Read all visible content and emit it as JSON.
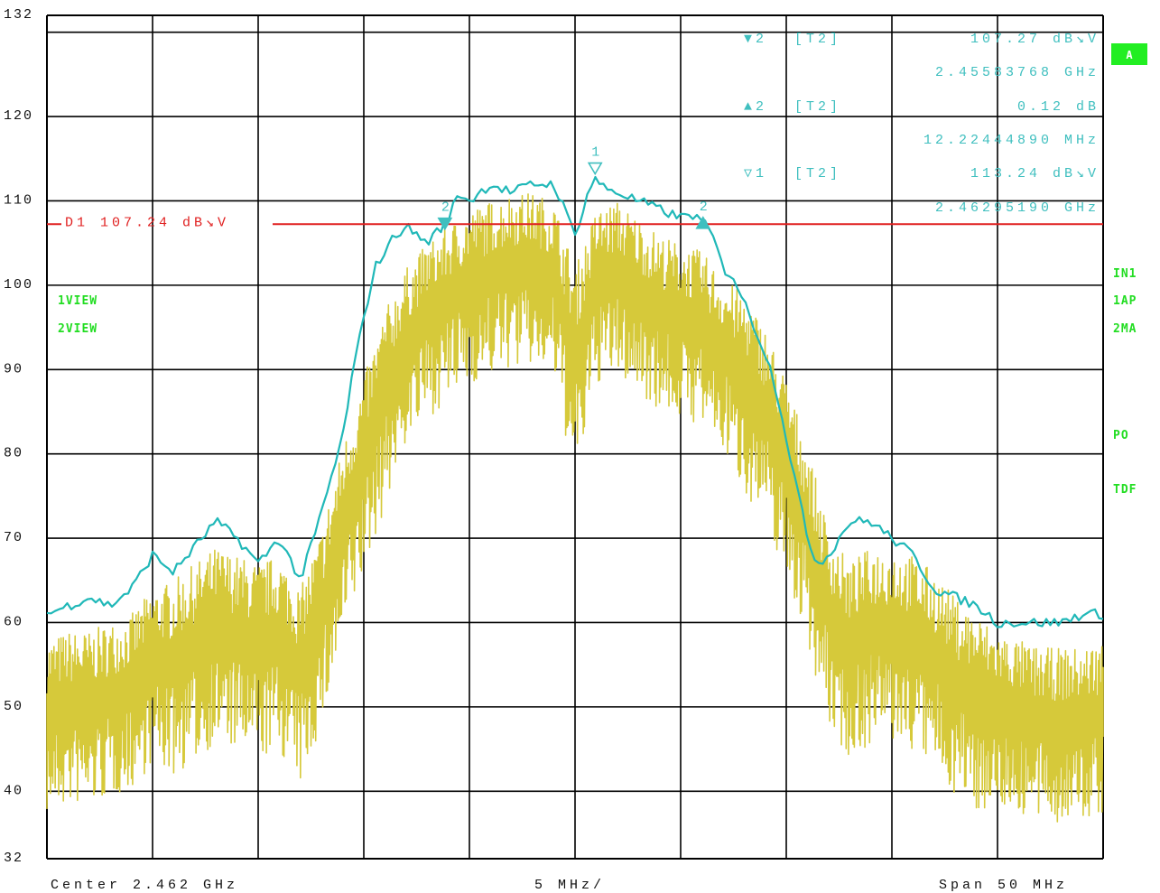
{
  "chart_data": {
    "type": "line",
    "x_center": "Center 2.462 GHz",
    "x_div": "5 MHz/",
    "x_span": "Span 50 MHz",
    "xlim_mhz": [
      2437,
      2487
    ],
    "ylim": [
      32,
      132
    ],
    "y_ticks": [
      "132",
      "120",
      "110",
      "100",
      "90",
      "80",
      "70",
      "60",
      "50",
      "40",
      "32"
    ],
    "y_tick_values": [
      132,
      120,
      110,
      100,
      90,
      80,
      70,
      60,
      50,
      40,
      32
    ],
    "grid": true,
    "colors": {
      "max_hold": "#20b8b8",
      "clear_write": "#d6c93a",
      "display_line": "#e02020",
      "annotation": "#3fbfbf",
      "side_labels": "#22dd22",
      "badge": "#22ee22"
    },
    "display_line": {
      "label": "D1 107.24 dB↘V",
      "value": 107.24
    },
    "markers": [
      {
        "symbol": "▼2",
        "text": "[T2]",
        "value": "107.27 dB↘V",
        "freq": "2.45583768 GHz"
      },
      {
        "symbol": "▲2",
        "text": "[T2]",
        "value": "0.12 dB",
        "freq": "12.22444890 MHz"
      },
      {
        "symbol": "▽1",
        "text": "[T2]",
        "value": "113.24 dB↘V",
        "freq": "2.46295190 GHz"
      }
    ],
    "marker_points": [
      {
        "label": "2",
        "x": 2455.84,
        "y": 107.3,
        "shape": "down-filled"
      },
      {
        "label": "1",
        "x": 2462.95,
        "y": 113.2,
        "shape": "down-open"
      },
      {
        "label": "2",
        "x": 2468.06,
        "y": 107.4,
        "shape": "up-filled"
      }
    ],
    "series": [
      {
        "name": "",
        "role": "max_hold",
        "x": [
          2437,
          2438,
          2439,
          2440,
          2441,
          2442,
          2443,
          2444,
          2445,
          2446,
          2447,
          2448,
          2449,
          2450,
          2451,
          2451.5,
          2452,
          2452.5,
          2453,
          2453.5,
          2454,
          2454.5,
          2455,
          2455.5,
          2455.84,
          2456,
          2456.5,
          2457,
          2457.5,
          2458,
          2459,
          2460,
          2461,
          2462,
          2462.5,
          2462.95,
          2463,
          2464,
          2465,
          2466,
          2467,
          2467.5,
          2468.06,
          2468.5,
          2469,
          2469.5,
          2470,
          2470.5,
          2471,
          2471.5,
          2472,
          2472.5,
          2473,
          2473.5,
          2474,
          2475,
          2476,
          2477,
          2478,
          2479,
          2480,
          2481,
          2482,
          2483,
          2484,
          2485,
          2486,
          2487
        ],
        "y": [
          61,
          62,
          63,
          62,
          64,
          68,
          66,
          69,
          72,
          70,
          67,
          70,
          65,
          73,
          82,
          90,
          96,
          102,
          104,
          106,
          107,
          106,
          105,
          106.5,
          107.3,
          108,
          111,
          110,
          111,
          112,
          111,
          112,
          112,
          106,
          110,
          113.2,
          112,
          111,
          110,
          109,
          108,
          108.5,
          107.4,
          106,
          102,
          101,
          98,
          95,
          92,
          88,
          82,
          76,
          70,
          67,
          68,
          72,
          72,
          70,
          68,
          64,
          63,
          62,
          60,
          60,
          60,
          60,
          61,
          61
        ]
      },
      {
        "name": "",
        "role": "clear_write",
        "x": [
          2437,
          2438,
          2439,
          2440,
          2441,
          2442,
          2443,
          2444,
          2445,
          2446,
          2447,
          2448,
          2449,
          2450,
          2451,
          2452,
          2453,
          2454,
          2455,
          2456,
          2457,
          2458,
          2459,
          2460,
          2461,
          2462,
          2463,
          2464,
          2465,
          2466,
          2467,
          2468,
          2469,
          2470,
          2471,
          2472,
          2473,
          2474,
          2475,
          2476,
          2477,
          2478,
          2479,
          2480,
          2481,
          2482,
          2483,
          2484,
          2485,
          2486,
          2487
        ],
        "y": [
          50,
          51,
          51,
          52,
          53,
          56,
          56,
          58,
          60,
          59,
          58,
          59,
          55,
          62,
          72,
          80,
          88,
          94,
          97,
          99,
          101,
          102,
          103,
          103,
          102,
          92,
          101,
          102,
          100,
          98,
          97,
          96,
          93,
          90,
          86,
          80,
          72,
          62,
          58,
          60,
          60,
          59,
          57,
          54,
          52,
          51,
          50,
          49,
          49,
          49,
          50
        ],
        "spread": [
          8,
          8,
          8,
          8,
          8,
          8,
          9,
          9,
          9,
          9,
          9,
          9,
          9,
          9,
          9,
          9,
          9,
          8,
          8,
          8,
          8,
          8,
          8,
          8,
          8,
          10,
          8,
          8,
          8,
          8,
          8,
          8,
          8,
          9,
          9,
          9,
          9,
          9,
          9,
          9,
          9,
          9,
          9,
          9,
          9,
          8,
          8,
          8,
          8,
          8,
          8
        ]
      }
    ]
  },
  "side_labels": {
    "left": [
      "1VIEW",
      "2VIEW"
    ],
    "right": [
      "IN1",
      "1AP",
      "2MA",
      "PO",
      "TDF"
    ],
    "badge": "A"
  }
}
